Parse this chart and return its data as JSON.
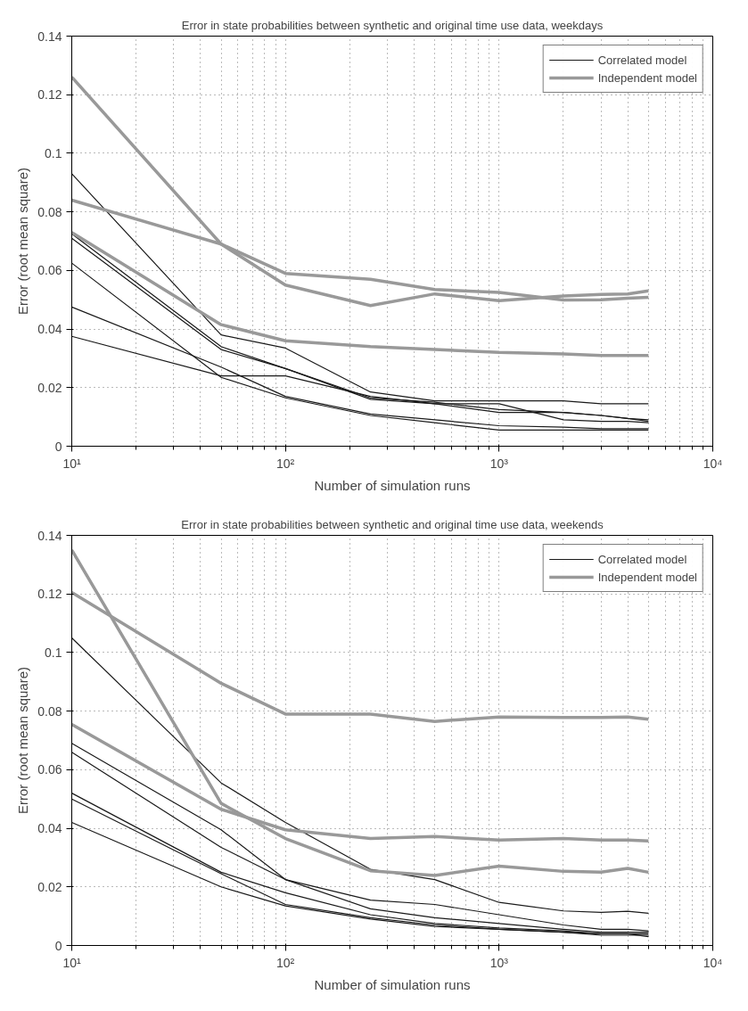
{
  "chart_data": [
    {
      "type": "line",
      "title": "Error in state probabilities between synthetic and original time use data, weekdays",
      "xlabel": "Number of simulation runs",
      "ylabel": "Error (root mean square)",
      "log": "x",
      "grid": true,
      "legend": "top right",
      "x": [
        10,
        50,
        100,
        250,
        500,
        1000,
        2000,
        3000,
        4000,
        5000
      ],
      "xlim": [
        10,
        10000
      ],
      "xticks": [
        {
          "value": 10,
          "label": "10¹"
        },
        {
          "value": 100,
          "label": "10²"
        },
        {
          "value": 1000,
          "label": "10³"
        },
        {
          "value": 10000,
          "label": "10⁴"
        }
      ],
      "ylim": [
        0,
        0.14
      ],
      "yticks": [
        0,
        0.02,
        0.04,
        0.06,
        0.08,
        0.1,
        0.12,
        0.14
      ],
      "series": [
        {
          "name": "Correlated model",
          "color": "#1a1a1a",
          "values": [
            0.093,
            0.038,
            0.0335,
            0.0185,
            0.0155,
            0.0155,
            0.0155,
            0.0145,
            0.0145,
            0.0145
          ]
        },
        {
          "color": "#1a1a1a",
          "values": [
            0.0725,
            0.034,
            0.0265,
            0.0165,
            0.015,
            0.0125,
            0.0115,
            0.0105,
            0.0095,
            0.009
          ]
        },
        {
          "color": "#1a1a1a",
          "values": [
            0.071,
            0.033,
            0.0265,
            0.016,
            0.0145,
            0.0145,
            0.009,
            0.0085,
            0.0085,
            0.008
          ]
        },
        {
          "color": "#1a1a1a",
          "values": [
            0.0625,
            0.0235,
            0.0165,
            0.0105,
            0.008,
            0.0055,
            0.0055,
            0.0055,
            0.0055,
            0.0055
          ]
        },
        {
          "color": "#1a1a1a",
          "values": [
            0.0475,
            0.027,
            0.017,
            0.011,
            0.009,
            0.007,
            0.0065,
            0.006,
            0.006,
            0.006
          ]
        },
        {
          "color": "#1a1a1a",
          "values": [
            0.0375,
            0.024,
            0.024,
            0.017,
            0.0145,
            0.0115,
            0.0115,
            0.0105,
            0.0095,
            0.0085
          ]
        },
        {
          "name": "Independent model",
          "color": "#999999",
          "values": [
            0.126,
            0.069,
            0.055,
            0.048,
            0.052,
            0.0497,
            0.0513,
            0.0518,
            0.052,
            0.053
          ]
        },
        {
          "color": "#999999",
          "values": [
            0.084,
            0.069,
            0.059,
            0.057,
            0.0535,
            0.0525,
            0.0499,
            0.05,
            0.0505,
            0.0508
          ]
        },
        {
          "color": "#999999",
          "values": [
            0.073,
            0.0415,
            0.036,
            0.034,
            0.033,
            0.032,
            0.0315,
            0.031,
            0.031,
            0.031
          ]
        }
      ]
    },
    {
      "type": "line",
      "title": "Error in state probabilities between synthetic and original time use data, weekends",
      "xlabel": "Number of simulation runs",
      "ylabel": "Error (root mean square)",
      "log": "x",
      "grid": true,
      "legend": "top right",
      "x": [
        10,
        50,
        100,
        250,
        500,
        1000,
        2000,
        3000,
        4000,
        5000
      ],
      "xlim": [
        10,
        10000
      ],
      "xticks": [
        {
          "value": 10,
          "label": "10¹"
        },
        {
          "value": 100,
          "label": "10²"
        },
        {
          "value": 1000,
          "label": "10³"
        },
        {
          "value": 10000,
          "label": "10⁴"
        }
      ],
      "ylim": [
        0,
        0.14
      ],
      "yticks": [
        0,
        0.02,
        0.04,
        0.06,
        0.08,
        0.1,
        0.12,
        0.14
      ],
      "series": [
        {
          "name": "Correlated model",
          "color": "#1a1a1a",
          "values": [
            0.105,
            0.0555,
            0.042,
            0.026,
            0.0225,
            0.0147,
            0.0118,
            0.0113,
            0.0117,
            0.011
          ]
        },
        {
          "color": "#1a1a1a",
          "values": [
            0.069,
            0.0395,
            0.0225,
            0.0155,
            0.014,
            0.0105,
            0.007,
            0.0055,
            0.0055,
            0.005
          ]
        },
        {
          "color": "#1a1a1a",
          "values": [
            0.066,
            0.0335,
            0.0225,
            0.0125,
            0.0095,
            0.0075,
            0.0055,
            0.0045,
            0.0045,
            0.0045
          ]
        },
        {
          "color": "#1a1a1a",
          "values": [
            0.052,
            0.025,
            0.018,
            0.0105,
            0.0075,
            0.006,
            0.005,
            0.004,
            0.004,
            0.004
          ]
        },
        {
          "color": "#1a1a1a",
          "values": [
            0.05,
            0.0245,
            0.014,
            0.0095,
            0.007,
            0.0055,
            0.0045,
            0.0035,
            0.0035,
            0.0035
          ]
        },
        {
          "color": "#1a1a1a",
          "values": [
            0.042,
            0.02,
            0.0135,
            0.009,
            0.0065,
            0.0055,
            0.0045,
            0.004,
            0.004,
            0.003
          ]
        },
        {
          "name": "Independent model",
          "color": "#999999",
          "values": [
            0.135,
            0.0485,
            0.0365,
            0.0255,
            0.0239,
            0.0271,
            0.0253,
            0.025,
            0.0263,
            0.025
          ]
        },
        {
          "color": "#999999",
          "values": [
            0.1205,
            0.0895,
            0.079,
            0.079,
            0.0765,
            0.078,
            0.0778,
            0.0778,
            0.078,
            0.0772
          ]
        },
        {
          "color": "#999999",
          "values": [
            0.0755,
            0.0465,
            0.0395,
            0.0365,
            0.0372,
            0.036,
            0.0365,
            0.036,
            0.036,
            0.0357
          ]
        }
      ]
    }
  ]
}
